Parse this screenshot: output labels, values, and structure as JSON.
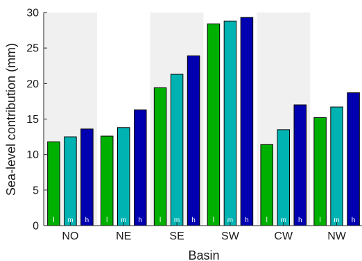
{
  "chart_data": {
    "type": "bar",
    "title": "",
    "xlabel": "Basin",
    "ylabel": "Sea-level contribution (mm)",
    "categories": [
      "NO",
      "NE",
      "SE",
      "SW",
      "CW",
      "NW"
    ],
    "ylim": [
      0,
      30
    ],
    "yticks": [
      0,
      5,
      10,
      15,
      20,
      25,
      30
    ],
    "grid": false,
    "legend": "none",
    "background_bands": "alternating light gray behind odd basins (NO, SE, CW)",
    "series": [
      {
        "bar_label": "l",
        "color": "#00b000",
        "values": [
          11.8,
          12.6,
          19.4,
          28.4,
          11.4,
          15.2
        ]
      },
      {
        "bar_label": "m",
        "color": "#00b3b3",
        "values": [
          12.5,
          13.8,
          21.3,
          28.8,
          13.5,
          16.7
        ]
      },
      {
        "bar_label": "h",
        "color": "#0000b0",
        "values": [
          13.6,
          16.3,
          23.9,
          29.3,
          17.0,
          18.7
        ]
      }
    ],
    "band_color": "#f0f0f0"
  }
}
